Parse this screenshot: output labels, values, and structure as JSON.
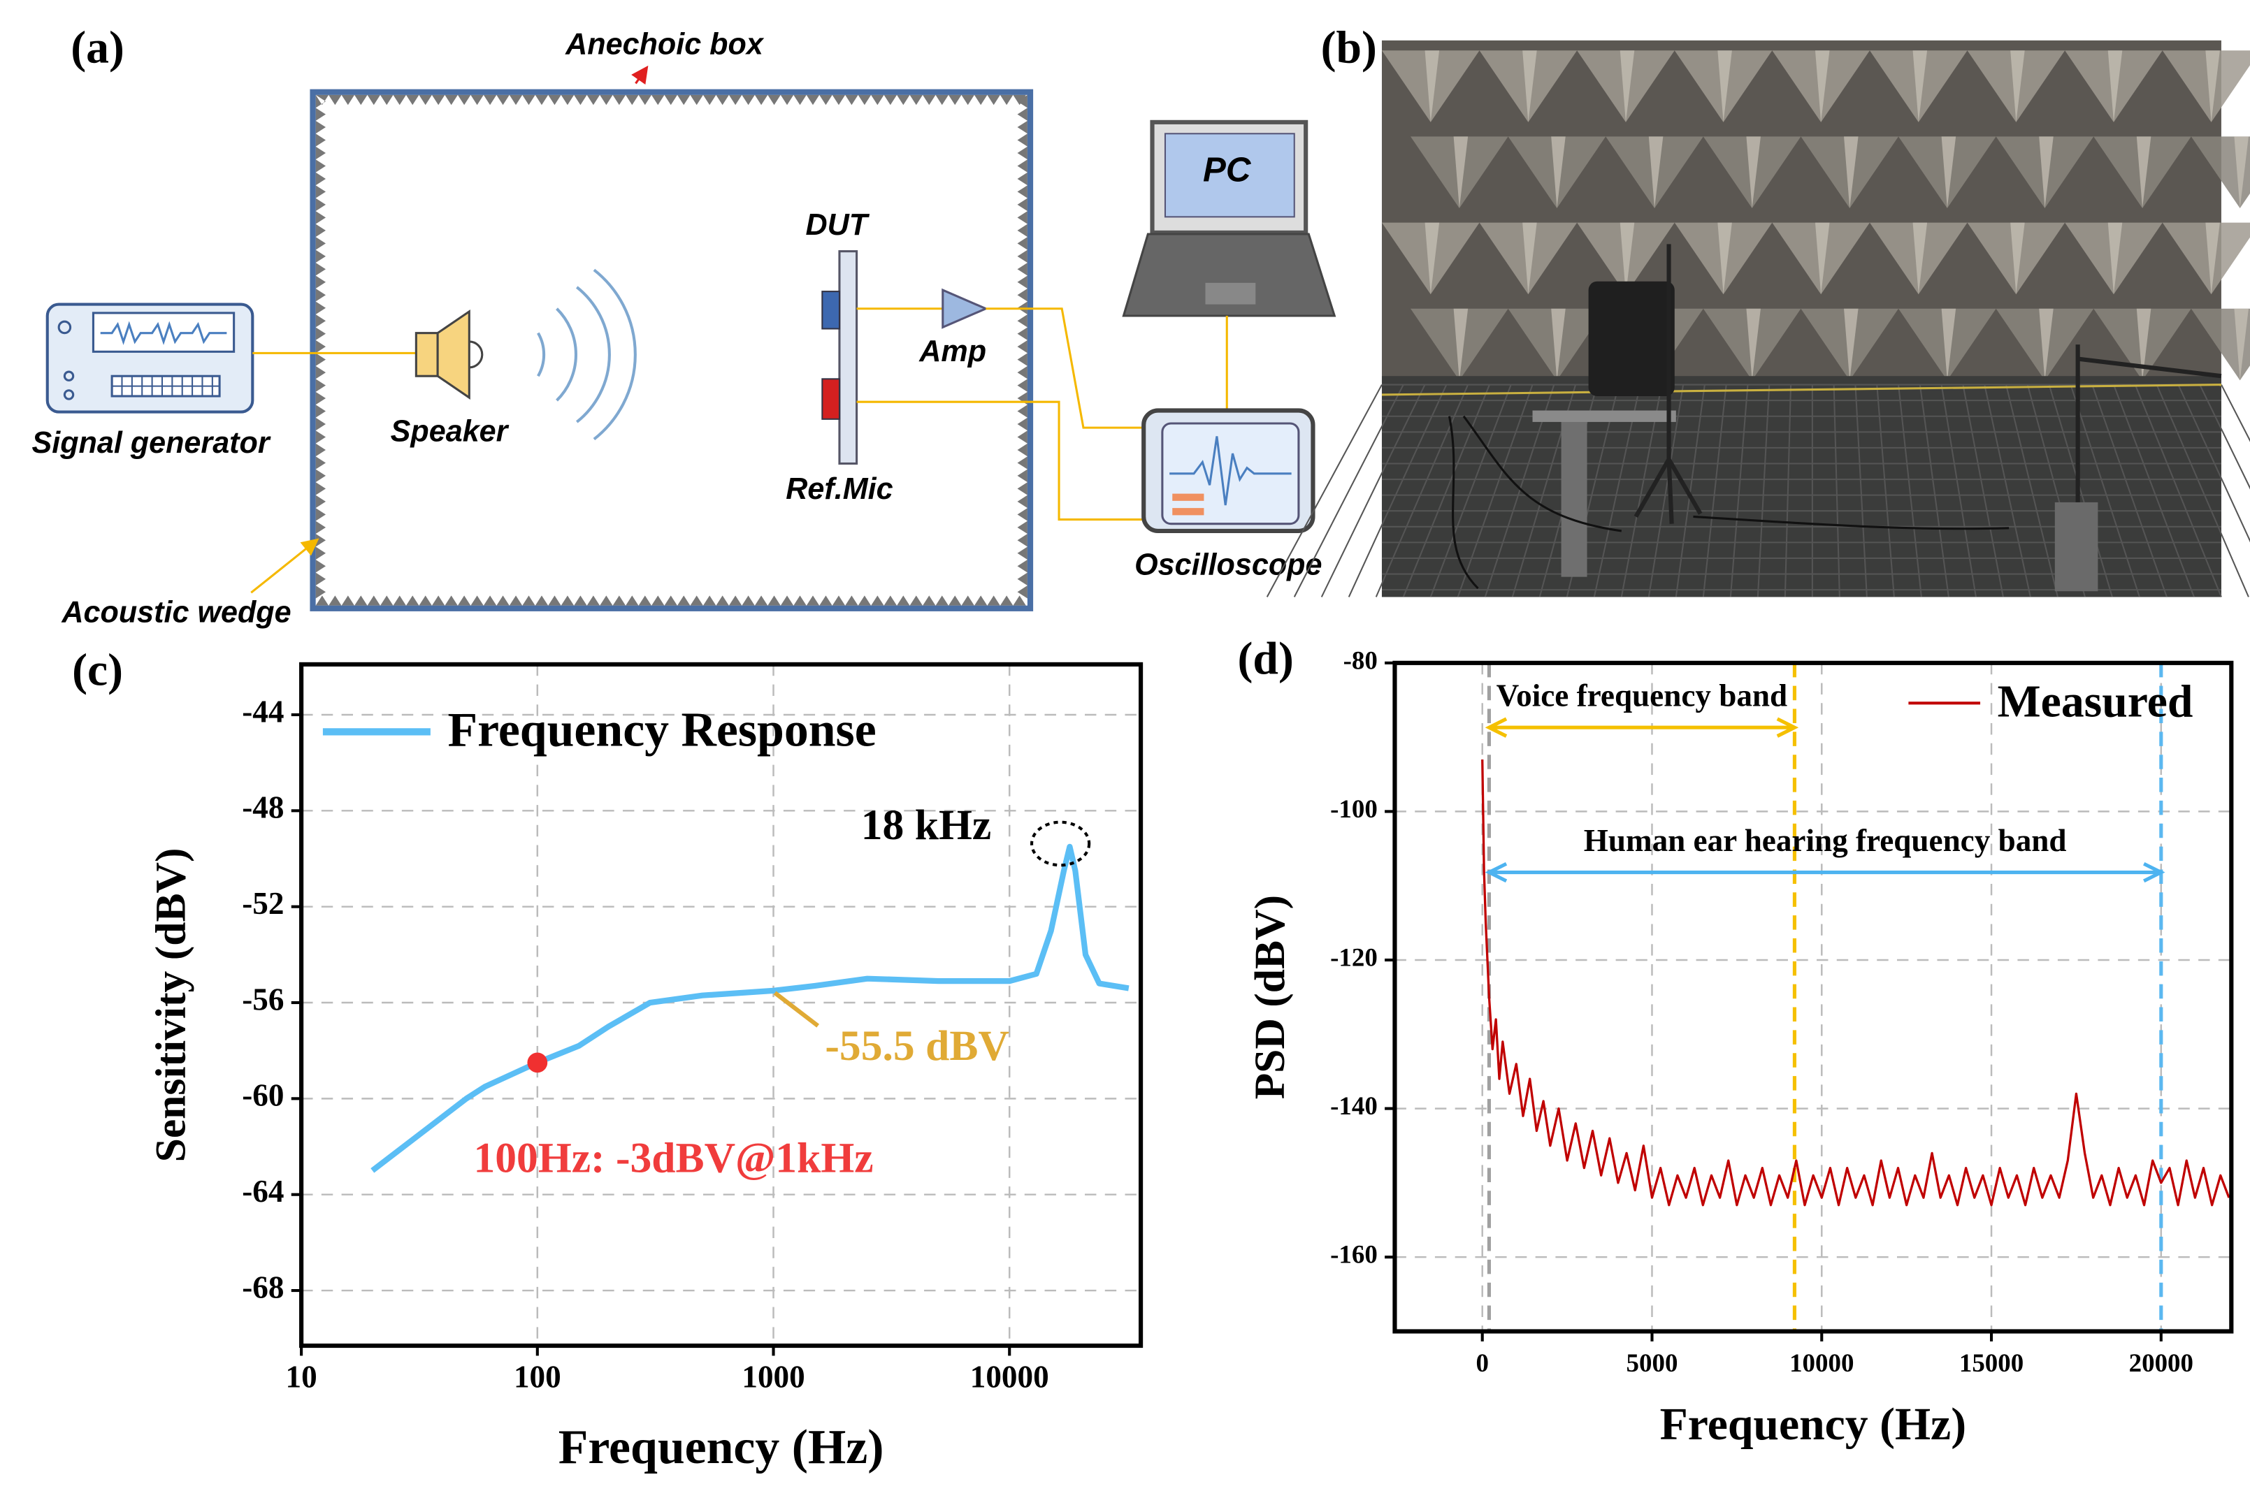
{
  "diagram": {
    "label": "(a)",
    "anechoic_box": "Anechoic box",
    "signal_generator": "Signal generator",
    "speaker": "Speaker",
    "dut": "DUT",
    "amp": "Amp",
    "ref_mic": "Ref.Mic",
    "pc": "PC",
    "oscilloscope": "Oscilloscope",
    "acoustic_wedge": "Acoustic wedge"
  },
  "photo": {
    "label": "(b)"
  },
  "chart_data": [
    {
      "type": "line",
      "label": "(c)",
      "xlabel": "Frequency (Hz)",
      "ylabel": "Sensitivity (dBV)",
      "xscale": "log",
      "xlim": [
        10,
        36000
      ],
      "ylim": [
        -70.3,
        -41.9
      ],
      "xticks": [
        10,
        100,
        1000,
        10000
      ],
      "yticks": [
        -44,
        -48,
        -52,
        -56,
        -60,
        -64,
        -68
      ],
      "grid": true,
      "x": [
        20,
        50,
        60,
        100,
        150,
        200,
        300,
        500,
        1000,
        1500,
        2500,
        5000,
        10000,
        13000,
        15000,
        17000,
        18000,
        19000,
        21000,
        24000,
        32000
      ],
      "series": [
        {
          "name": "Frequency Response",
          "color": "#5bbef5",
          "values": [
            -63,
            -60,
            -59.5,
            -58.5,
            -57.8,
            -57,
            -56,
            -55.7,
            -55.5,
            -55.3,
            -55,
            -55.1,
            -55.1,
            -54.8,
            -53,
            -50.5,
            -49.5,
            -50.5,
            -54,
            -55.2,
            -55.4
          ]
        }
      ],
      "marker": {
        "x": 100,
        "y": -58.5,
        "color": "#f03030"
      },
      "annotations": [
        {
          "text": "18 kHz",
          "color": "#000000"
        },
        {
          "text": "-55.5 dBV",
          "color": "#e0aa35"
        },
        {
          "text": "100Hz: -3dBV@1kHz",
          "color": "#f03c3c"
        }
      ]
    },
    {
      "type": "line",
      "label": "(d)",
      "xlabel": "Frequency (Hz)",
      "ylabel": "PSD (dBV)",
      "xscale": "linear",
      "xlim": [
        -2580,
        22070
      ],
      "ylim": [
        -170,
        -80
      ],
      "xticks": [
        0,
        5000,
        10000,
        15000,
        20000
      ],
      "yticks": [
        -80,
        -100,
        -120,
        -140,
        -160
      ],
      "grid": true,
      "x": [
        0,
        50,
        100,
        200,
        300,
        400,
        500,
        600,
        800,
        1000,
        1200,
        1400,
        1600,
        1800,
        2000,
        2250,
        2500,
        2750,
        3000,
        3250,
        3500,
        3750,
        4000,
        4250,
        4500,
        4750,
        5000,
        5250,
        5500,
        5750,
        6000,
        6250,
        6500,
        6750,
        7000,
        7250,
        7500,
        7750,
        8000,
        8250,
        8500,
        8750,
        9000,
        9250,
        9500,
        9750,
        10000,
        10250,
        10500,
        10750,
        11000,
        11250,
        11500,
        11750,
        12000,
        12250,
        12500,
        12750,
        13000,
        13250,
        13500,
        13750,
        14000,
        14250,
        14500,
        14750,
        15000,
        15250,
        15500,
        15750,
        16000,
        16250,
        16500,
        16750,
        17000,
        17250,
        17500,
        17750,
        18000,
        18250,
        18500,
        18750,
        19000,
        19250,
        19500,
        19750,
        20000,
        20250,
        20500,
        20750,
        21000,
        21250,
        21500,
        21750,
        22000
      ],
      "series": [
        {
          "name": "Measured",
          "color": "#c00000",
          "values": [
            -93,
            -108,
            -115,
            -125,
            -132,
            -128,
            -136,
            -131,
            -138,
            -134,
            -141,
            -136,
            -143,
            -139,
            -145,
            -140,
            -147,
            -142,
            -148,
            -143,
            -149,
            -144,
            -150,
            -146,
            -151,
            -145,
            -152,
            -148,
            -153,
            -149,
            -152,
            -148,
            -153,
            -149,
            -152,
            -147,
            -153,
            -149,
            -152,
            -148,
            -153,
            -149,
            -152,
            -147,
            -153,
            -149,
            -152,
            -148,
            -153,
            -148,
            -152,
            -149,
            -153,
            -147,
            -152,
            -148,
            -153,
            -149,
            -152,
            -146,
            -152,
            -149,
            -153,
            -148,
            -152,
            -149,
            -153,
            -148,
            -152,
            -149,
            -153,
            -148,
            -152,
            -149,
            -152,
            -147,
            -138,
            -146,
            -152,
            -149,
            -153,
            -148,
            -152,
            -149,
            -153,
            -147,
            -150,
            -148,
            -153,
            -147,
            -152,
            -148,
            -153,
            -149,
            -152
          ]
        }
      ],
      "vlines": [
        {
          "x": 200,
          "color": "#a0a0a0"
        },
        {
          "x": 9200,
          "color": "#f5c000"
        },
        {
          "x": 20000,
          "color": "#5bb8f0"
        }
      ],
      "bands": [
        {
          "label": "Voice frequency band",
          "start": 200,
          "end": 9200,
          "color": "#f5c000"
        },
        {
          "label": "Human ear hearing frequency band",
          "start": 200,
          "end": 20000,
          "color": "#4db3f0"
        }
      ]
    }
  ]
}
